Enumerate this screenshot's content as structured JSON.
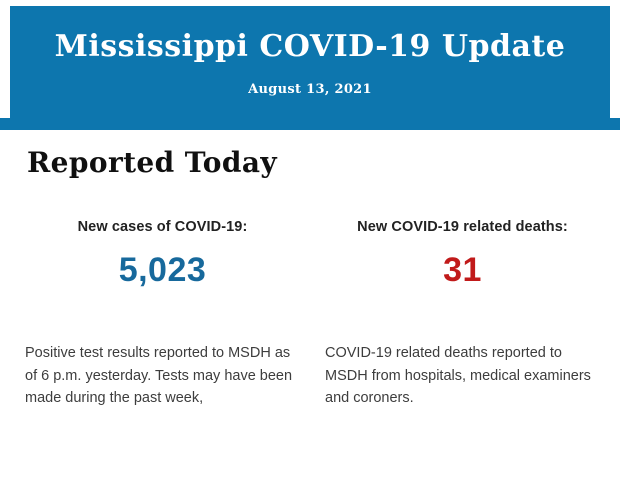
{
  "header": {
    "title": "Mississippi COVID-19 Update",
    "date": "August 13, 2021",
    "background_color": "#0d76ae",
    "text_color": "#ffffff"
  },
  "main": {
    "section_title": "Reported Today",
    "stats": [
      {
        "label": "New cases of COVID-19:",
        "value": "5,023",
        "value_color": "#17699c",
        "description": "Positive test results reported to MSDH as of 6 p.m. yesterday. Tests may have been made during the past week,"
      },
      {
        "label": "New COVID-19 related deaths:",
        "value": "31",
        "value_color": "#c11a1a",
        "description": "COVID-19 related deaths reported to MSDH from hospitals, medical examiners and coroners."
      }
    ]
  }
}
